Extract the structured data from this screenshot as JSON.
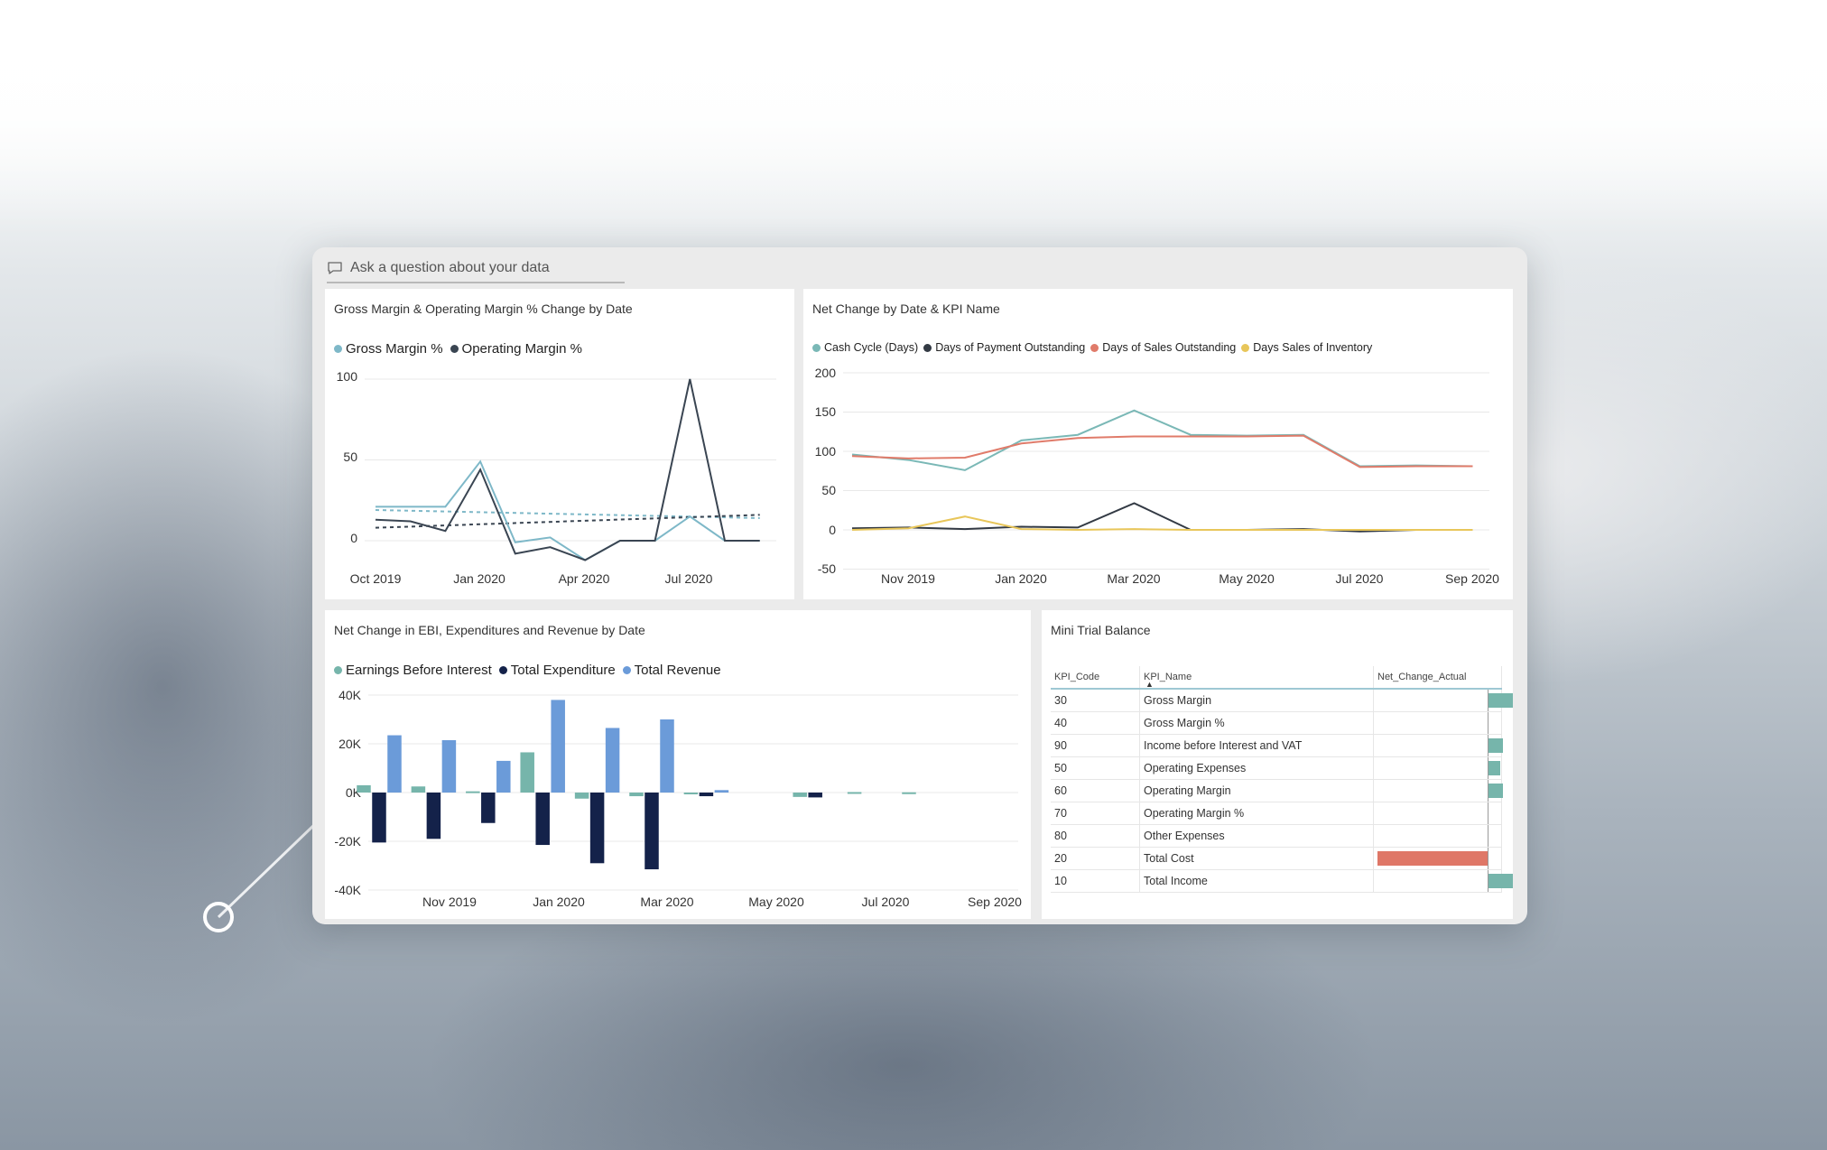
{
  "qa": {
    "placeholder": "Ask a question about your data",
    "icon": "speech-bubble-icon"
  },
  "colors": {
    "gross": "#7eb8c8",
    "operating": "#3a4552",
    "cash": "#7ab8b6",
    "dpo": "#333a44",
    "dso": "#e07b6a",
    "dsi": "#e8c65a",
    "ebi": "#76b5ab",
    "exp": "#14224a",
    "rev": "#6b9bd9",
    "pos": "#76b5ab",
    "neg": "#df7767"
  },
  "chart1": {
    "title": "Gross Margin & Operating Margin % Change by Date",
    "legend": [
      "Gross Margin %",
      "Operating Margin %"
    ],
    "yticks": [
      "100",
      "50",
      "0"
    ],
    "xticks": [
      "Oct 2019",
      "Jan 2020",
      "Apr 2020",
      "Jul 2020"
    ]
  },
  "chart2": {
    "title": "Net Change by Date & KPI Name",
    "legend": [
      "Cash Cycle (Days)",
      "Days of Payment Outstanding",
      "Days of Sales Outstanding",
      "Days Sales of Inventory"
    ],
    "yticks": [
      "200",
      "150",
      "100",
      "50",
      "0",
      "-50"
    ],
    "xticks": [
      "Nov 2019",
      "Jan 2020",
      "Mar 2020",
      "May 2020",
      "Jul 2020",
      "Sep 2020"
    ]
  },
  "chart3": {
    "title": "Net Change in EBI, Expenditures and Revenue by Date",
    "legend": [
      "Earnings Before Interest",
      "Total Expenditure",
      "Total Revenue"
    ],
    "yticks": [
      "40K",
      "20K",
      "0K",
      "-20K",
      "-40K"
    ],
    "xticks": [
      "Nov 2019",
      "Jan 2020",
      "Mar 2020",
      "May 2020",
      "Jul 2020",
      "Sep 2020"
    ]
  },
  "table": {
    "title": "Mini Trial Balance",
    "headers": {
      "code": "KPI_Code",
      "name": "KPI_Name",
      "value": "Net_Change_Actual"
    },
    "rows": [
      {
        "code": "30",
        "name": "Gross Margin"
      },
      {
        "code": "40",
        "name": "Gross Margin %"
      },
      {
        "code": "90",
        "name": "Income before Interest and VAT"
      },
      {
        "code": "50",
        "name": "Operating Expenses"
      },
      {
        "code": "60",
        "name": "Operating Margin"
      },
      {
        "code": "70",
        "name": "Operating Margin %"
      },
      {
        "code": "80",
        "name": "Other Expenses"
      },
      {
        "code": "20",
        "name": "Total Cost"
      },
      {
        "code": "10",
        "name": "Total Income"
      }
    ],
    "values": [
      10,
      0,
      6,
      5,
      6,
      0,
      0,
      -46,
      10
    ]
  },
  "chart_data": [
    {
      "type": "line",
      "title": "Gross Margin & Operating Margin % Change by Date",
      "x": [
        "Oct 2019",
        "Nov 2019",
        "Dec 2019",
        "Jan 2020",
        "Feb 2020",
        "Mar 2020",
        "Apr 2020",
        "May 2020",
        "Jun 2020",
        "Jul 2020",
        "Aug 2020",
        "Sep 2020"
      ],
      "series": [
        {
          "name": "Gross Margin %",
          "values": [
            21,
            21,
            21,
            49,
            -1,
            2,
            -12,
            0,
            0,
            15,
            0,
            0
          ]
        },
        {
          "name": "Operating Margin %",
          "values": [
            13,
            12,
            6,
            44,
            -8,
            -4,
            -12,
            0,
            0,
            100,
            0,
            0
          ]
        }
      ],
      "trend": {
        "Gross Margin %": [
          19,
          14
        ],
        "Operating Margin %": [
          8,
          16
        ]
      },
      "ylim": [
        -15,
        100
      ],
      "grid": true,
      "legend": "top-left"
    },
    {
      "type": "line",
      "title": "Net Change by Date & KPI Name",
      "x": [
        "Oct 2019",
        "Nov 2019",
        "Dec 2019",
        "Jan 2020",
        "Feb 2020",
        "Mar 2020",
        "Apr 2020",
        "May 2020",
        "Jun 2020",
        "Jul 2020",
        "Aug 2020",
        "Sep 2020"
      ],
      "series": [
        {
          "name": "Cash Cycle (Days)",
          "values": [
            96,
            89,
            76,
            114,
            121,
            152,
            121,
            120,
            121,
            81,
            82,
            81
          ]
        },
        {
          "name": "Days of Payment Outstanding",
          "values": [
            2,
            3,
            1,
            4,
            3,
            34,
            0,
            0,
            1,
            -2,
            0,
            0
          ]
        },
        {
          "name": "Days of Sales Outstanding",
          "values": [
            94,
            91,
            92,
            110,
            117,
            119,
            119,
            119,
            120,
            80,
            81,
            81
          ]
        },
        {
          "name": "Days Sales of Inventory",
          "values": [
            0,
            2,
            17,
            1,
            0,
            1,
            0,
            0,
            0,
            0,
            0,
            0
          ]
        }
      ],
      "ylim": [
        -50,
        200
      ],
      "grid": true,
      "legend": "top-left"
    },
    {
      "type": "bar",
      "title": "Net Change in EBI, Expenditures and Revenue by Date",
      "categories": [
        "Oct 2019",
        "Nov 2019",
        "Dec 2019",
        "Jan 2020",
        "Feb 2020",
        "Mar 2020",
        "Apr 2020",
        "May 2020",
        "Jun 2020",
        "Jul 2020",
        "Aug 2020",
        "Sep 2020"
      ],
      "series": [
        {
          "name": "Earnings Before Interest",
          "values": [
            3000,
            2500,
            500,
            16500,
            -2500,
            -1500,
            -300,
            0,
            -1800,
            200,
            100,
            0
          ]
        },
        {
          "name": "Total Expenditure",
          "values": [
            -20500,
            -19000,
            -12500,
            -21500,
            -29000,
            -31500,
            -1500,
            0,
            -2000,
            0,
            0,
            0
          ]
        },
        {
          "name": "Total Revenue",
          "values": [
            23500,
            21500,
            13000,
            38000,
            26500,
            30000,
            1000,
            0,
            0,
            0,
            0,
            0
          ]
        }
      ],
      "ylim": [
        -40000,
        40000
      ],
      "grid": true,
      "legend": "top-left"
    }
  ]
}
